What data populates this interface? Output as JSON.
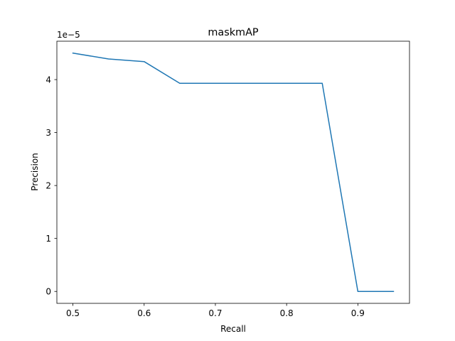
{
  "chart_data": {
    "type": "line",
    "title": "maskmAP",
    "xlabel": "Recall",
    "ylabel": "Precision",
    "y_offset_text": "1e−5",
    "xlim": [
      0.4775,
      0.9725
    ],
    "ylim": [
      -0.225,
      4.725
    ],
    "x_ticks": [
      0.5,
      0.6,
      0.7,
      0.8,
      0.9
    ],
    "x_tick_labels": [
      "0.5",
      "0.6",
      "0.7",
      "0.8",
      "0.9"
    ],
    "y_ticks": [
      0,
      1,
      2,
      3,
      4
    ],
    "y_tick_labels": [
      "0",
      "1",
      "2",
      "3",
      "4"
    ],
    "y_scale": "×1e-5",
    "grid": false,
    "legend": "none",
    "series": [
      {
        "color": "#1f77b4",
        "x": [
          0.5,
          0.55,
          0.6,
          0.65,
          0.7,
          0.75,
          0.8,
          0.85,
          0.9,
          0.95
        ],
        "y": [
          4.5,
          4.39,
          4.34,
          3.93,
          3.93,
          3.93,
          3.93,
          3.93,
          0.0,
          0.0
        ]
      }
    ]
  }
}
